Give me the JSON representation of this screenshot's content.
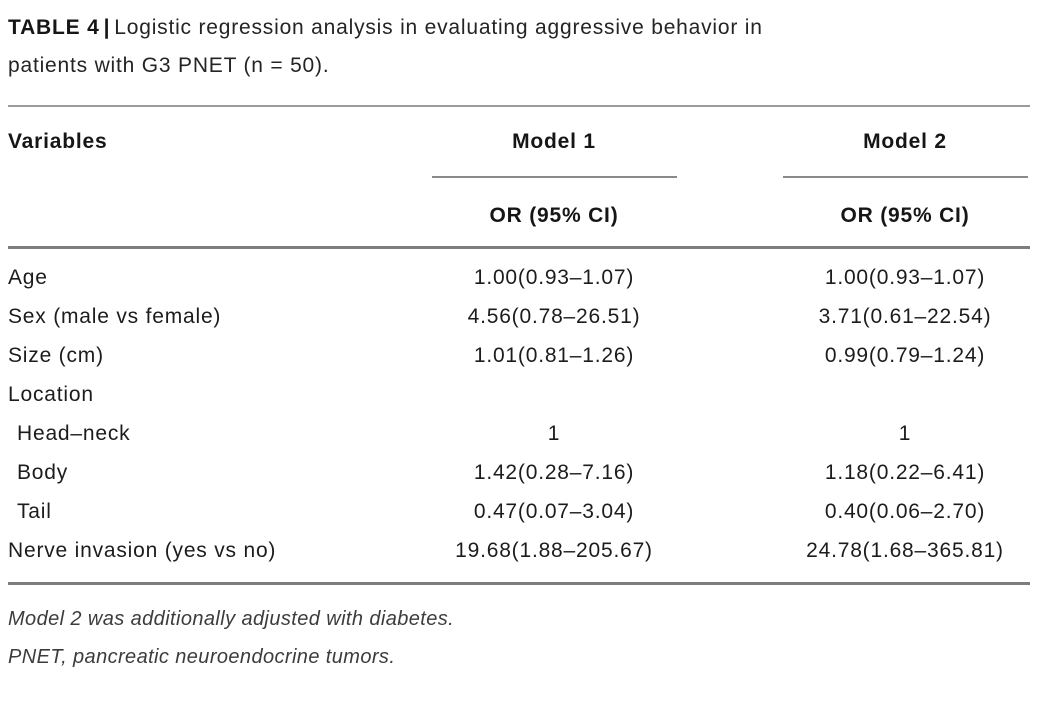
{
  "caption": {
    "label": "TABLE 4",
    "separator": "|",
    "text_line1": "Logistic regression analysis in evaluating aggressive behavior in",
    "text_line2": "patients with G3 PNET (n = 50)."
  },
  "table": {
    "variables_header": "Variables",
    "model_groups": [
      {
        "name": "Model 1",
        "subheader": "OR (95% CI)"
      },
      {
        "name": "Model 2",
        "subheader": "OR (95% CI)"
      }
    ],
    "rows": [
      {
        "label": "Age",
        "model1": "1.00(0.93–1.07)",
        "model2": "1.00(0.93–1.07)"
      },
      {
        "label": "Sex (male vs female)",
        "model1": "4.56(0.78–26.51)",
        "model2": "3.71(0.61–22.54)"
      },
      {
        "label": "Size (cm)",
        "model1": "1.01(0.81–1.26)",
        "model2": "0.99(0.79–1.24)"
      },
      {
        "label": "Location",
        "model1": "",
        "model2": ""
      },
      {
        "label": "Head–neck",
        "model1": "1",
        "model2": "1"
      },
      {
        "label": "Body",
        "model1": "1.42(0.28–7.16)",
        "model2": "1.18(0.22–6.41)"
      },
      {
        "label": "Tail",
        "model1": "0.47(0.07–3.04)",
        "model2": "0.40(0.06–2.70)"
      },
      {
        "label": "Nerve invasion (yes vs no)",
        "model1": "19.68(1.88–205.67)",
        "model2": "24.78(1.68–365.81)"
      }
    ]
  },
  "footnotes": [
    "Model 2 was additionally adjusted with diabetes.",
    "PNET, pancreatic neuroendocrine tumors."
  ],
  "colors": {
    "text": "#1c1c1c",
    "rule_thin": "#9b9b9b",
    "rule_thick": "#7d7d7d",
    "background": "#ffffff"
  }
}
